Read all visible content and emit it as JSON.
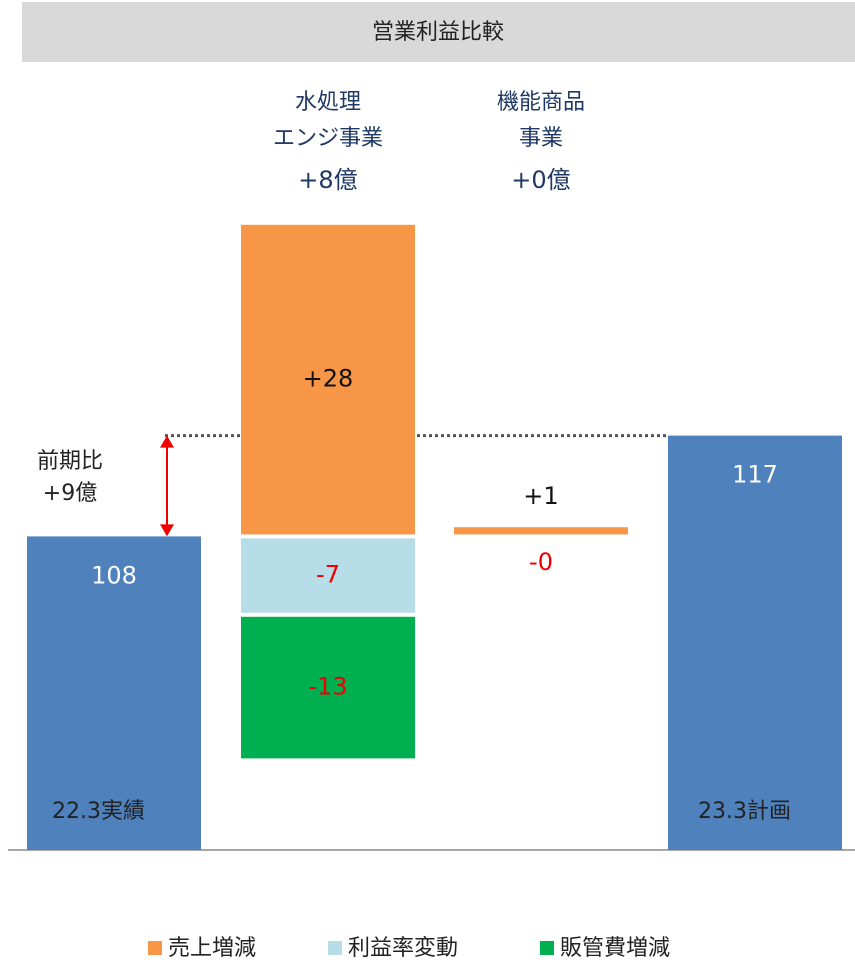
{
  "chart_data": {
    "type": "waterfall",
    "title": "営業利益比較",
    "ylim": [
      80,
      145
    ],
    "totals": {
      "color": "#4f81bd",
      "categories": [
        "22.3実績",
        "23.3計画"
      ],
      "values": [
        108,
        117
      ]
    },
    "groups": [
      {
        "label_lines": [
          "水処理",
          "エンジ事業"
        ],
        "total_label": "+8億"
      },
      {
        "label_lines": [
          "機能商品",
          "事業"
        ],
        "total_label": "+0億"
      }
    ],
    "series": [
      {
        "name": "売上増減",
        "color": "#f79646",
        "values": [
          28,
          1
        ],
        "value_labels": [
          "+28",
          "+1"
        ]
      },
      {
        "name": "利益率変動",
        "color": "#b7dde8",
        "values": [
          -7,
          0
        ],
        "value_labels": [
          "-7",
          "-0"
        ]
      },
      {
        "name": "販管費増減",
        "color": "#00b050",
        "values": [
          -13,
          null
        ],
        "value_labels": [
          "-13",
          null
        ]
      }
    ],
    "annotation": {
      "lines": [
        "前期比",
        "+9億"
      ]
    }
  }
}
